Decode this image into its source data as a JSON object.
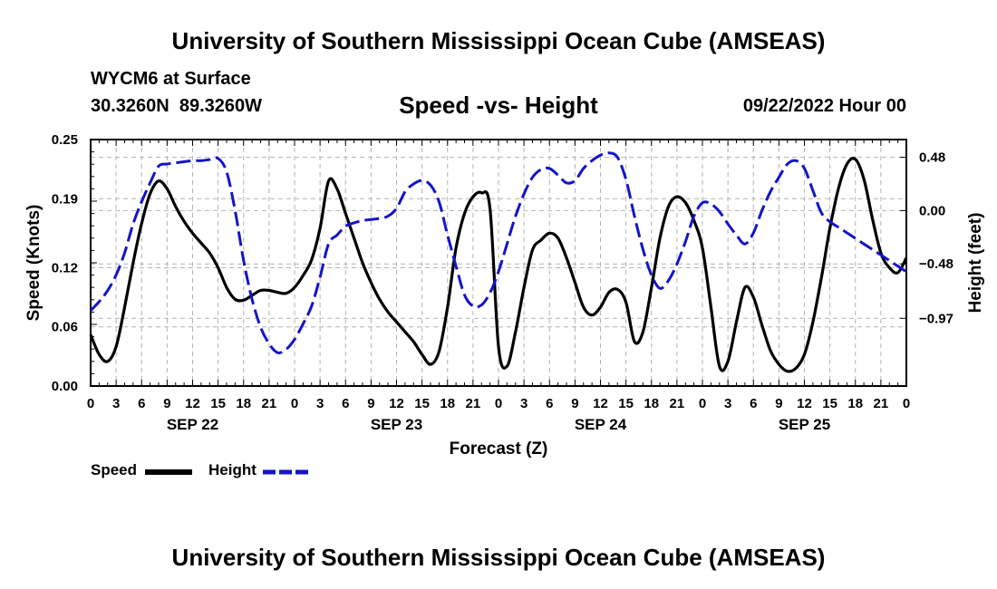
{
  "header": {
    "title": "University of Southern Mississippi Ocean Cube (AMSEAS)",
    "station": "WYCM6 at Surface",
    "coords": "30.3260N  89.3260W",
    "chart_title": "Speed -vs- Height",
    "datetime": "09/22/2022 Hour 00"
  },
  "footer": {
    "title": "University of Southern Mississippi Ocean Cube (AMSEAS)"
  },
  "legend": {
    "speed_label": "Speed",
    "height_label": "Height"
  },
  "colors": {
    "speed": "#000000",
    "height": "#1414c8",
    "grid": "#b4b4b4"
  },
  "chart_data": {
    "type": "line",
    "title": "Speed -vs- Height",
    "xlabel": "Forecast (Z)",
    "ylabel": "Speed (Knots)",
    "y2label": "Height (feet)",
    "xlim": [
      0,
      96
    ],
    "ylim": [
      0,
      0.25
    ],
    "y2lim": [
      -1.58,
      0.64
    ],
    "x_ticks": [
      0,
      3,
      6,
      9,
      12,
      15,
      18,
      21,
      24,
      27,
      30,
      33,
      36,
      39,
      42,
      45,
      48,
      51,
      54,
      57,
      60,
      63,
      66,
      69,
      72,
      75,
      78,
      81,
      84,
      87,
      90,
      93,
      96
    ],
    "x_tick_labels": [
      "0",
      "3",
      "6",
      "9",
      "12",
      "15",
      "18",
      "21",
      "0",
      "3",
      "6",
      "9",
      "12",
      "15",
      "18",
      "21",
      "0",
      "3",
      "6",
      "9",
      "12",
      "15",
      "18",
      "21",
      "0",
      "3",
      "6",
      "9",
      "12",
      "15",
      "18",
      "21",
      "0"
    ],
    "date_labels": [
      {
        "x": 12,
        "label": "SEP 22"
      },
      {
        "x": 36,
        "label": "SEP 23"
      },
      {
        "x": 60,
        "label": "SEP 24"
      },
      {
        "x": 84,
        "label": "SEP 25"
      }
    ],
    "y_ticks": [
      0.0,
      0.06,
      0.12,
      0.19,
      0.25
    ],
    "y_tick_labels": [
      "0.00",
      "0.06",
      "0.12",
      "0.19",
      "0.25"
    ],
    "y2_ticks": [
      0.48,
      0.0,
      -0.48,
      -0.97
    ],
    "y2_tick_labels": [
      "0.48",
      "0.00",
      "−0.48",
      "−0.97"
    ],
    "series": [
      {
        "name": "Speed",
        "axis": "left",
        "x": [
          0,
          1,
          2,
          3,
          4,
          5,
          6,
          7,
          8,
          9,
          10,
          11,
          12,
          13,
          14,
          15,
          16,
          17,
          18,
          19,
          20,
          21,
          22,
          23,
          24,
          25,
          26,
          27,
          28,
          29,
          30,
          31,
          32,
          33,
          34,
          35,
          36,
          37,
          38,
          39,
          40,
          41,
          42,
          43,
          44,
          45,
          46,
          47,
          48,
          49,
          50,
          51,
          52,
          53,
          54,
          55,
          56,
          57,
          58,
          59,
          60,
          61,
          62,
          63,
          64,
          65,
          66,
          67,
          68,
          69,
          70,
          71,
          72,
          73,
          74,
          75,
          76,
          77,
          78,
          79,
          80,
          81,
          82,
          83,
          84,
          85,
          86,
          87,
          88,
          89,
          90,
          91,
          92,
          93,
          94,
          95,
          96
        ],
        "values": [
          0.052,
          0.032,
          0.025,
          0.04,
          0.08,
          0.125,
          0.165,
          0.195,
          0.208,
          0.2,
          0.182,
          0.167,
          0.155,
          0.145,
          0.135,
          0.12,
          0.1,
          0.088,
          0.087,
          0.092,
          0.097,
          0.097,
          0.095,
          0.094,
          0.1,
          0.112,
          0.128,
          0.16,
          0.208,
          0.2,
          0.175,
          0.15,
          0.125,
          0.105,
          0.088,
          0.075,
          0.065,
          0.055,
          0.045,
          0.032,
          0.022,
          0.035,
          0.08,
          0.14,
          0.175,
          0.192,
          0.196,
          0.18,
          0.04,
          0.02,
          0.055,
          0.1,
          0.138,
          0.148,
          0.155,
          0.15,
          0.13,
          0.105,
          0.08,
          0.072,
          0.08,
          0.095,
          0.098,
          0.085,
          0.045,
          0.055,
          0.1,
          0.15,
          0.182,
          0.192,
          0.186,
          0.168,
          0.14,
          0.08,
          0.02,
          0.025,
          0.065,
          0.1,
          0.09,
          0.062,
          0.036,
          0.022,
          0.015,
          0.018,
          0.032,
          0.065,
          0.11,
          0.16,
          0.2,
          0.225,
          0.23,
          0.21,
          0.17,
          0.135,
          0.12,
          0.115,
          0.13
        ]
      },
      {
        "name": "Height",
        "axis": "right",
        "x": [
          0,
          1,
          2,
          3,
          4,
          5,
          6,
          7,
          8,
          9,
          10,
          11,
          12,
          13,
          14,
          15,
          16,
          17,
          18,
          19,
          20,
          21,
          22,
          23,
          24,
          25,
          26,
          27,
          28,
          29,
          30,
          31,
          32,
          33,
          34,
          35,
          36,
          37,
          38,
          39,
          40,
          41,
          42,
          43,
          44,
          45,
          46,
          47,
          48,
          49,
          50,
          51,
          52,
          53,
          54,
          55,
          56,
          57,
          58,
          59,
          60,
          61,
          62,
          63,
          64,
          65,
          66,
          67,
          68,
          69,
          70,
          71,
          72,
          73,
          74,
          75,
          76,
          77,
          78,
          79,
          80,
          81,
          82,
          83,
          84,
          85,
          86,
          87,
          88,
          89,
          90,
          91,
          92,
          93,
          94,
          95,
          96
        ],
        "values": [
          -0.9,
          -0.82,
          -0.72,
          -0.58,
          -0.38,
          -0.12,
          0.08,
          0.25,
          0.4,
          0.42,
          0.43,
          0.44,
          0.45,
          0.45,
          0.46,
          0.47,
          0.35,
          0.0,
          -0.45,
          -0.8,
          -1.05,
          -1.2,
          -1.28,
          -1.25,
          -1.16,
          -1.02,
          -0.86,
          -0.6,
          -0.3,
          -0.22,
          -0.14,
          -0.11,
          -0.09,
          -0.08,
          -0.07,
          -0.05,
          0.02,
          0.17,
          0.24,
          0.27,
          0.23,
          0.08,
          -0.22,
          -0.5,
          -0.76,
          -0.86,
          -0.85,
          -0.74,
          -0.55,
          -0.3,
          -0.05,
          0.15,
          0.3,
          0.37,
          0.38,
          0.32,
          0.25,
          0.27,
          0.38,
          0.45,
          0.5,
          0.52,
          0.48,
          0.28,
          -0.05,
          -0.35,
          -0.58,
          -0.7,
          -0.63,
          -0.48,
          -0.28,
          -0.05,
          0.07,
          0.06,
          -0.01,
          -0.12,
          -0.22,
          -0.3,
          -0.2,
          0.0,
          0.17,
          0.3,
          0.42,
          0.45,
          0.38,
          0.18,
          -0.02,
          -0.1,
          -0.15,
          -0.2,
          -0.25,
          -0.3,
          -0.35,
          -0.4,
          -0.45,
          -0.5,
          -0.55
        ]
      }
    ]
  }
}
